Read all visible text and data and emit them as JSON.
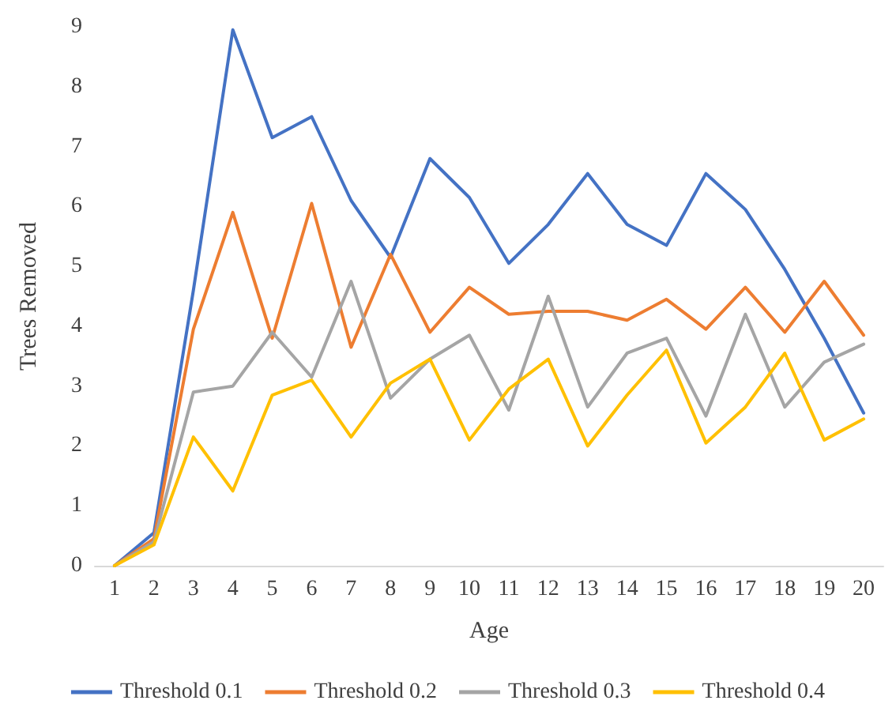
{
  "chart_data": {
    "type": "line",
    "xlabel": "Age",
    "ylabel": "Trees Removed",
    "categories": [
      "1",
      "2",
      "3",
      "4",
      "5",
      "6",
      "7",
      "8",
      "9",
      "10",
      "11",
      "12",
      "13",
      "14",
      "15",
      "16",
      "17",
      "18",
      "19",
      "20"
    ],
    "ylim": [
      0,
      9
    ],
    "yticks": [
      0,
      1,
      2,
      3,
      4,
      5,
      6,
      7,
      8,
      9
    ],
    "grid": false,
    "legend": "bottom",
    "marker": "none",
    "line_style": "solid",
    "series": [
      {
        "name": "Threshold 0.1",
        "color": "#4472c4",
        "values": [
          0,
          0.55,
          4.6,
          8.95,
          7.15,
          7.5,
          6.1,
          5.15,
          6.8,
          6.15,
          5.05,
          5.7,
          6.55,
          5.7,
          5.35,
          6.55,
          5.95,
          4.95,
          3.8,
          2.55
        ]
      },
      {
        "name": "Threshold 0.2",
        "color": "#ed7d31",
        "values": [
          0,
          0.45,
          3.95,
          5.9,
          3.8,
          6.05,
          3.65,
          5.2,
          3.9,
          4.65,
          4.2,
          4.25,
          4.25,
          4.1,
          4.45,
          3.95,
          4.65,
          3.9,
          4.75,
          3.85
        ]
      },
      {
        "name": "Threshold 0.3",
        "color": "#a5a5a5",
        "values": [
          0,
          0.4,
          2.9,
          3.0,
          3.9,
          3.15,
          4.75,
          2.8,
          3.45,
          3.85,
          2.6,
          4.5,
          2.65,
          3.55,
          3.8,
          2.5,
          4.2,
          2.65,
          3.4,
          3.7
        ]
      },
      {
        "name": "Threshold 0.4",
        "color": "#ffc000",
        "values": [
          0,
          0.35,
          2.15,
          1.25,
          2.85,
          3.1,
          2.15,
          3.05,
          3.45,
          2.1,
          2.95,
          3.45,
          2.0,
          2.85,
          3.6,
          2.05,
          2.65,
          3.55,
          2.1,
          2.45
        ]
      }
    ]
  }
}
